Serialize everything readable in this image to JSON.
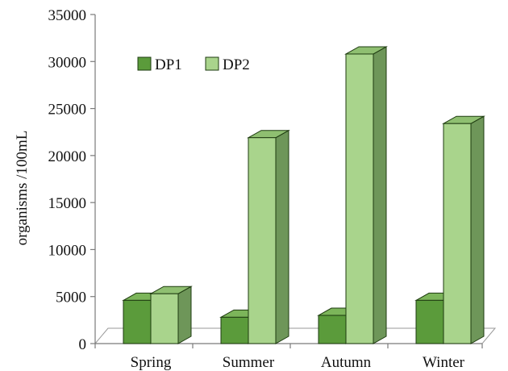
{
  "chart_data": {
    "type": "bar",
    "categories": [
      "Spring",
      "Summer",
      "Autumn",
      "Winter"
    ],
    "series": [
      {
        "name": "DP1",
        "values": [
          4600,
          2800,
          3000,
          4600
        ]
      },
      {
        "name": "DP2",
        "values": [
          5300,
          21900,
          30800,
          23400
        ]
      }
    ],
    "ylabel": "organisms /100mL",
    "xlabel": "",
    "title": "",
    "ylim": [
      0,
      35000
    ],
    "yticks": [
      0,
      5000,
      10000,
      15000,
      20000,
      25000,
      30000,
      35000
    ],
    "grid": false,
    "legend_position": "top-left",
    "colors": {
      "DP1": {
        "front": "#5b9b3b",
        "top": "#7cb55a",
        "side": "#3f6f2a"
      },
      "DP2": {
        "front": "#a9d48c",
        "top": "#8fbf71",
        "side": "#6e9659"
      }
    }
  }
}
